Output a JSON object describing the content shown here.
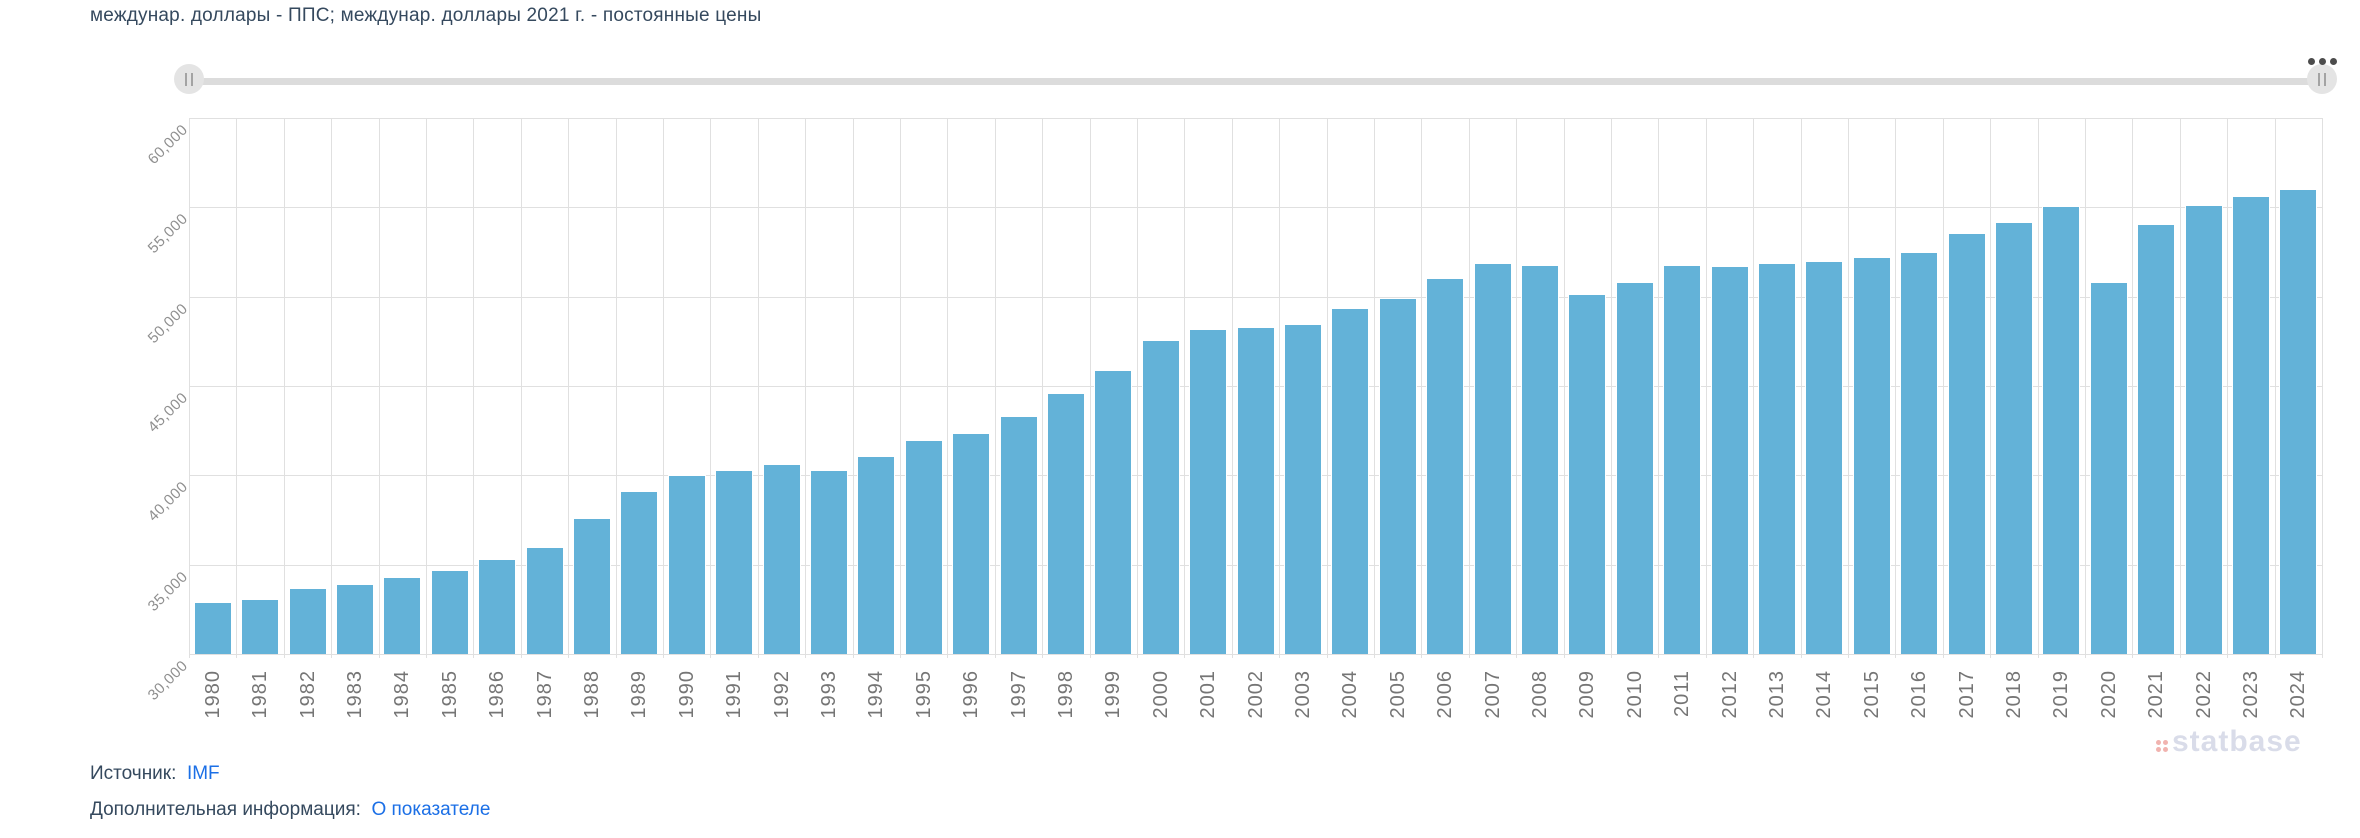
{
  "header": {
    "title": "междунар. доллары - ППС; междунар. доллары 2021 г. - постоянные цены"
  },
  "chart_data": {
    "type": "bar",
    "title": "междунар. доллары - ППС; междунар. доллары 2021 г. - постоянные цены",
    "categories": [
      "1980",
      "1981",
      "1982",
      "1983",
      "1984",
      "1985",
      "1986",
      "1987",
      "1988",
      "1989",
      "1990",
      "1991",
      "1992",
      "1993",
      "1994",
      "1995",
      "1996",
      "1997",
      "1998",
      "1999",
      "2000",
      "2001",
      "2002",
      "2003",
      "2004",
      "2005",
      "2006",
      "2007",
      "2008",
      "2009",
      "2010",
      "2011",
      "2012",
      "2013",
      "2014",
      "2015",
      "2016",
      "2017",
      "2018",
      "2019",
      "2020",
      "2021",
      "2022",
      "2023",
      "2024"
    ],
    "values": [
      32900,
      33100,
      33700,
      33900,
      34300,
      34700,
      35300,
      36000,
      37600,
      39100,
      40000,
      40300,
      40650,
      40300,
      41100,
      42000,
      42400,
      43300,
      44600,
      45900,
      47600,
      48200,
      48300,
      48500,
      49350,
      49950,
      51050,
      51900,
      51800,
      50150,
      50800,
      51800,
      51700,
      51900,
      52000,
      52250,
      52500,
      53550,
      54200,
      55100,
      50800,
      54050,
      55150,
      55650,
      56050
    ],
    "xlabel": "",
    "ylabel": "",
    "ylim": [
      30000,
      60000
    ],
    "grid": true,
    "legend": "none",
    "bar_color": "#63b2d8",
    "y_ticks": [
      {
        "value": 60000,
        "label": "60,000"
      },
      {
        "value": 55000,
        "label": "55,000"
      },
      {
        "value": 50000,
        "label": "50,000"
      },
      {
        "value": 45000,
        "label": "45,000"
      },
      {
        "value": 40000,
        "label": "40,000"
      },
      {
        "value": 35000,
        "label": "35,000"
      },
      {
        "value": 30000,
        "label": "30,000"
      }
    ]
  },
  "footer": {
    "source_label": "Источник:",
    "source_link": "IMF",
    "info_label": "Дополнительная информация:",
    "info_link": "О показателе"
  },
  "watermark": {
    "text": "statbase",
    "text_color": "#d9dce9",
    "icon_color": "#f1b3af"
  }
}
